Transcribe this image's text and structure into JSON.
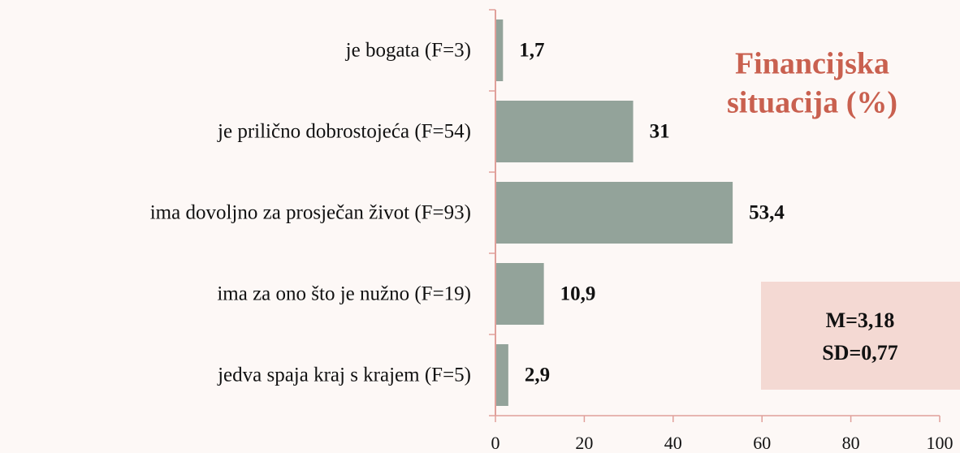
{
  "chart_data": {
    "type": "bar",
    "orientation": "horizontal",
    "title": [
      "Financijska",
      "situacija (%)"
    ],
    "categories": [
      "je bogata (F=3)",
      "je prilično dobrostojeća (F=54)",
      "ima dovoljno za prosječan život (F=93)",
      "ima za ono što je nužno (F=19)",
      "jedva spaja kraj s krajem (F=5)"
    ],
    "values": [
      1.7,
      31,
      53.4,
      10.9,
      2.9
    ],
    "value_labels": [
      "1,7",
      "31",
      "53,4",
      "10,9",
      "2,9"
    ],
    "color": "#93a39a",
    "xlim": [
      0,
      100
    ],
    "xticks": [
      0,
      20,
      40,
      60,
      80,
      100
    ],
    "annotation": [
      "M=3,18",
      "SD=0,77"
    ]
  }
}
